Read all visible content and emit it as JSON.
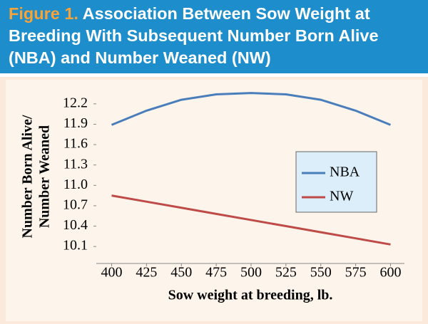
{
  "chart_data": {
    "type": "line",
    "title_label": "Figure 1.",
    "title": "Association Between Sow Weight at Breeding With Subsequent Number Born Alive (NBA) and Number Weaned (NW)",
    "xlabel": "Sow weight at breeding, lb.",
    "ylabel": [
      "Number Born Alive/",
      "Number Weaned"
    ],
    "x": [
      400,
      425,
      450,
      475,
      500,
      525,
      550,
      575,
      600
    ],
    "series": [
      {
        "name": "NBA",
        "color": "#4a7ebb",
        "values": [
          11.89,
          12.1,
          12.26,
          12.34,
          12.36,
          12.34,
          12.26,
          12.1,
          11.89
        ]
      },
      {
        "name": "NW",
        "color": "#be4b48",
        "values": [
          10.85,
          10.76,
          10.67,
          10.58,
          10.49,
          10.4,
          10.31,
          10.22,
          10.13
        ]
      }
    ],
    "xlim": [
      389,
      610
    ],
    "xticks": [
      400,
      425,
      450,
      475,
      500,
      525,
      550,
      575,
      600
    ],
    "ylim": [
      9.85,
      12.45
    ],
    "yticks": [
      10.1,
      10.4,
      10.7,
      {
        "value": 11,
        "label": "11.0"
      },
      11.3,
      11.6,
      11.9,
      12.2
    ],
    "legend": "right"
  }
}
